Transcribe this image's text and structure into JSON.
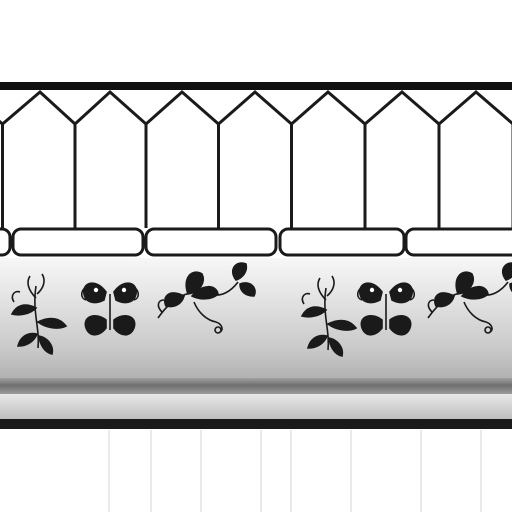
{
  "scene": {
    "subject": "fence-texture",
    "palette": {
      "background": "#ffffff",
      "line": "#1a1a1a",
      "band_light": "#f2f2f2",
      "band_mid": "#d4d4d4",
      "band_dark": "#9a9a9a"
    },
    "ornament_motifs": [
      "leaf-sprig",
      "butterfly",
      "flower-vine",
      "leaf-sprig",
      "butterfly",
      "flower-vine"
    ]
  }
}
